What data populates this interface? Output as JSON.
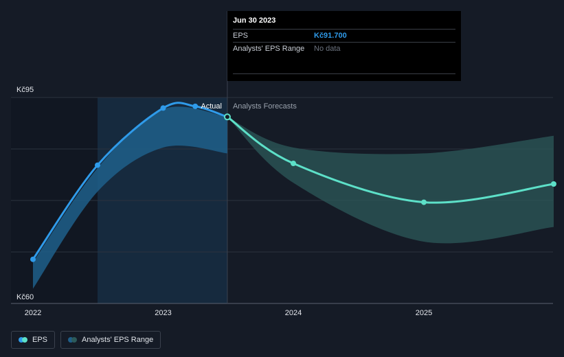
{
  "chart_data": {
    "type": "line",
    "y_unit_prefix": "Kč",
    "yaxis": {
      "ticks": [
        60,
        95
      ],
      "tick_labels": [
        "Kč60",
        "Kč95"
      ],
      "ylim": [
        60,
        95
      ]
    },
    "xaxis": {
      "tick_labels": [
        "2022",
        "2023",
        "2024",
        "2025"
      ]
    },
    "grid": true,
    "region_labels": {
      "actual": "Actual",
      "forecast": "Analysts Forecasts"
    },
    "series": [
      {
        "name": "EPS",
        "color": "#2f9bea",
        "points": [
          {
            "x": "2022-01-01",
            "y": 67.5
          },
          {
            "x": "2022-07-01",
            "y": 83.5
          },
          {
            "x": "2023-01-01",
            "y": 93.2
          },
          {
            "x": "2023-04-01",
            "y": 93.5
          },
          {
            "x": "2023-06-30",
            "y": 91.7
          }
        ]
      },
      {
        "name": "Analysts' EPS Range",
        "color": "#5de0c8",
        "points": [
          {
            "x": "2023-06-30",
            "y": 91.7
          },
          {
            "x": "2024-01-01",
            "y": 83.8
          },
          {
            "x": "2025-01-01",
            "y": 77.2
          },
          {
            "x": "2025-12-31",
            "y": 80.3
          }
        ]
      }
    ],
    "actual_range_band": [
      {
        "x": "2022-01-01",
        "low": 62.5,
        "high": 67.0
      },
      {
        "x": "2022-07-01",
        "low": 79.0,
        "high": 83.0
      },
      {
        "x": "2023-01-01",
        "low": 86.5,
        "high": 93.0
      },
      {
        "x": "2023-06-30",
        "low": 85.5,
        "high": 91.7
      }
    ],
    "forecast_range_band": [
      {
        "x": "2023-06-30",
        "low": 91.7,
        "high": 91.7
      },
      {
        "x": "2024-01-01",
        "low": 80.5,
        "high": 86.5
      },
      {
        "x": "2025-01-01",
        "low": 70.5,
        "high": 85.5
      },
      {
        "x": "2025-12-31",
        "low": 73.0,
        "high": 88.5
      }
    ]
  },
  "tooltip": {
    "date": "Jun 30 2023",
    "rows": [
      {
        "label": "EPS",
        "value": "Kč91.700"
      },
      {
        "label": "Analysts' EPS Range",
        "value": "No data"
      }
    ]
  },
  "legend": {
    "items": [
      {
        "label": "EPS",
        "colors": [
          "#2f9bea",
          "#5de0c8"
        ]
      },
      {
        "label": "Analysts' EPS Range",
        "colors": [
          "#1f5f8a",
          "#2c5a5a"
        ]
      }
    ]
  }
}
